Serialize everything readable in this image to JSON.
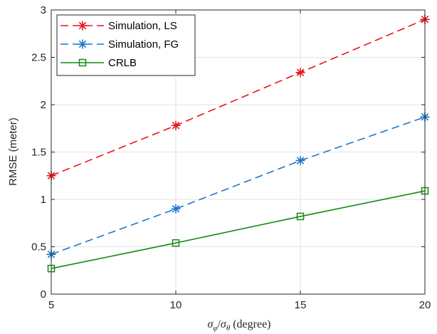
{
  "chart_data": {
    "type": "line",
    "x": [
      5,
      10,
      15,
      20
    ],
    "xlim": [
      5,
      20
    ],
    "ylim": [
      0,
      3
    ],
    "xticks": [
      5,
      10,
      15,
      20
    ],
    "yticks": [
      0,
      0.5,
      1,
      1.5,
      2,
      2.5,
      3
    ],
    "xtick_labels": [
      "5",
      "10",
      "15",
      "20"
    ],
    "ytick_labels": [
      "0",
      "0.5",
      "1",
      "1.5",
      "2",
      "2.5",
      "3"
    ],
    "xlabel": "σφ/σθ (degree)",
    "ylabel": "RMSE (meter)",
    "grid": true,
    "legend_position": "top-left",
    "series": [
      {
        "name": "Simulation, LS",
        "values": [
          1.25,
          1.78,
          2.34,
          2.9
        ],
        "color": "#e8141e",
        "dash": "dashed",
        "marker": "asterisk"
      },
      {
        "name": "Simulation, FG",
        "values": [
          0.42,
          0.9,
          1.41,
          1.87
        ],
        "color": "#1f77c8",
        "dash": "dashed",
        "marker": "asterisk"
      },
      {
        "name": "CRLB",
        "values": [
          0.27,
          0.54,
          0.82,
          1.09
        ],
        "color": "#138a13",
        "dash": "solid",
        "marker": "square"
      }
    ]
  }
}
